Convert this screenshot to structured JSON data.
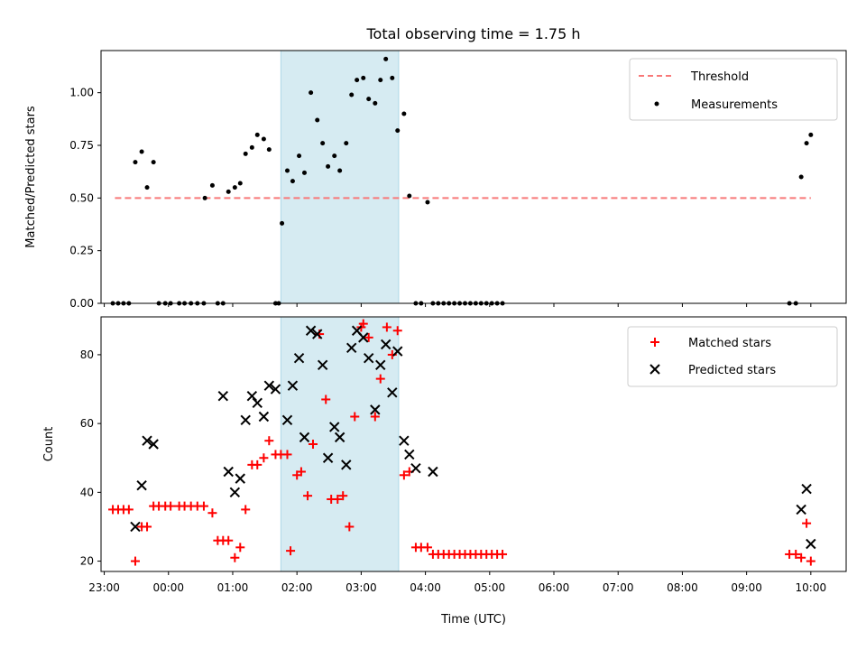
{
  "colors": {
    "threshold": "#f87878",
    "measurement": "#000000",
    "matched": "#ff0000",
    "predicted": "#000000",
    "span": "#add8e6"
  },
  "chart_data": [
    {
      "type": "scatter",
      "title": "Total observing time = 1.75 h",
      "xlabel": "",
      "ylabel": "Matched/Predicted stars",
      "ylim": [
        0.0,
        1.2
      ],
      "yticks": [
        0.0,
        0.25,
        0.5,
        0.75,
        1.0
      ],
      "ytick_labels": [
        "0.00",
        "0.25",
        "0.50",
        "0.75",
        "1.00"
      ],
      "xlim_hours": [
        -1.05,
        10.55
      ],
      "highlight_span": {
        "from": "01:45",
        "to": "03:35"
      },
      "legend": {
        "position": "top-right",
        "entries": [
          "Threshold",
          "Measurements"
        ]
      },
      "threshold": {
        "name": "Threshold",
        "y": 0.5,
        "x_from": "23:10",
        "x_to": "10:00",
        "style": "dashed"
      },
      "series": [
        {
          "name": "Measurements",
          "points": [
            [
              "23:08",
              0
            ],
            [
              "23:13",
              0
            ],
            [
              "23:18",
              0
            ],
            [
              "23:23",
              0
            ],
            [
              "23:29",
              0.67
            ],
            [
              "23:35",
              0.72
            ],
            [
              "23:40",
              0.55
            ],
            [
              "23:46",
              0.67
            ],
            [
              "23:51",
              0
            ],
            [
              "23:57",
              0
            ],
            [
              "00:02",
              0
            ],
            [
              "00:10",
              0
            ],
            [
              "00:15",
              0
            ],
            [
              "00:21",
              0
            ],
            [
              "00:27",
              0
            ],
            [
              "00:33",
              0
            ],
            [
              "00:34",
              0.5
            ],
            [
              "00:41",
              0.56
            ],
            [
              "00:46",
              0
            ],
            [
              "00:51",
              0
            ],
            [
              "00:56",
              0.53
            ],
            [
              "01:02",
              0.55
            ],
            [
              "01:07",
              0.57
            ],
            [
              "01:12",
              0.71
            ],
            [
              "01:18",
              0.74
            ],
            [
              "01:23",
              0.8
            ],
            [
              "01:29",
              0.78
            ],
            [
              "01:34",
              0.73
            ],
            [
              "01:40",
              0
            ],
            [
              "01:43",
              0
            ],
            [
              "01:46",
              0.38
            ],
            [
              "01:51",
              0.63
            ],
            [
              "01:56",
              0.58
            ],
            [
              "02:02",
              0.7
            ],
            [
              "02:07",
              0.62
            ],
            [
              "02:13",
              1.0
            ],
            [
              "02:19",
              0.87
            ],
            [
              "02:24",
              0.76
            ],
            [
              "02:29",
              0.65
            ],
            [
              "02:35",
              0.7
            ],
            [
              "02:40",
              0.63
            ],
            [
              "02:46",
              0.76
            ],
            [
              "02:51",
              0.99
            ],
            [
              "02:56",
              1.06
            ],
            [
              "03:02",
              1.07
            ],
            [
              "03:07",
              0.97
            ],
            [
              "03:13",
              0.95
            ],
            [
              "03:18",
              1.06
            ],
            [
              "03:23",
              1.16
            ],
            [
              "03:29",
              1.07
            ],
            [
              "03:34",
              0.82
            ],
            [
              "03:40",
              0.9
            ],
            [
              "03:45",
              0.51
            ],
            [
              "03:51",
              0
            ],
            [
              "03:56",
              0
            ],
            [
              "04:02",
              0.48
            ],
            [
              "04:07",
              0
            ],
            [
              "04:12",
              0
            ],
            [
              "04:17",
              0
            ],
            [
              "04:22",
              0
            ],
            [
              "04:27",
              0
            ],
            [
              "04:32",
              0
            ],
            [
              "04:37",
              0
            ],
            [
              "04:42",
              0
            ],
            [
              "04:47",
              0
            ],
            [
              "04:52",
              0
            ],
            [
              "04:57",
              0
            ],
            [
              "05:02",
              0
            ],
            [
              "05:07",
              0
            ],
            [
              "05:12",
              0
            ],
            [
              "09:40",
              0
            ],
            [
              "09:46",
              0
            ],
            [
              "09:51",
              0.6
            ],
            [
              "09:56",
              0.76
            ],
            [
              "10:00",
              0.8
            ]
          ]
        }
      ]
    },
    {
      "type": "scatter",
      "title": "",
      "xlabel": "Time (UTC)",
      "ylabel": "Count",
      "ylim": [
        17,
        91
      ],
      "yticks": [
        20,
        40,
        60,
        80
      ],
      "ytick_labels": [
        "20",
        "40",
        "60",
        "80"
      ],
      "xlim_hours": [
        -1.05,
        10.55
      ],
      "xticks": [
        "23:00",
        "00:00",
        "01:00",
        "02:00",
        "03:00",
        "04:00",
        "05:00",
        "06:00",
        "07:00",
        "08:00",
        "09:00",
        "10:00"
      ],
      "highlight_span": {
        "from": "01:45",
        "to": "03:35"
      },
      "legend": {
        "position": "top-right",
        "entries": [
          "Matched stars",
          "Predicted stars"
        ]
      },
      "series": [
        {
          "name": "Matched stars",
          "marker": "+",
          "points": [
            [
              "23:08",
              35
            ],
            [
              "23:13",
              35
            ],
            [
              "23:18",
              35
            ],
            [
              "23:23",
              35
            ],
            [
              "23:29",
              20
            ],
            [
              "23:35",
              30
            ],
            [
              "23:40",
              30
            ],
            [
              "23:46",
              36
            ],
            [
              "23:51",
              36
            ],
            [
              "23:57",
              36
            ],
            [
              "00:02",
              36
            ],
            [
              "00:10",
              36
            ],
            [
              "00:15",
              36
            ],
            [
              "00:21",
              36
            ],
            [
              "00:27",
              36
            ],
            [
              "00:33",
              36
            ],
            [
              "00:41",
              34
            ],
            [
              "00:46",
              26
            ],
            [
              "00:51",
              26
            ],
            [
              "00:56",
              26
            ],
            [
              "01:02",
              21
            ],
            [
              "01:07",
              24
            ],
            [
              "01:12",
              35
            ],
            [
              "01:18",
              48
            ],
            [
              "01:23",
              48
            ],
            [
              "01:29",
              50
            ],
            [
              "01:34",
              55
            ],
            [
              "01:40",
              51
            ],
            [
              "01:45",
              51
            ],
            [
              "01:51",
              51
            ],
            [
              "01:54",
              23
            ],
            [
              "02:00",
              45
            ],
            [
              "02:04",
              46
            ],
            [
              "02:10",
              39
            ],
            [
              "02:15",
              54
            ],
            [
              "02:21",
              86
            ],
            [
              "02:27",
              67
            ],
            [
              "02:32",
              38
            ],
            [
              "02:38",
              38
            ],
            [
              "02:43",
              39
            ],
            [
              "02:49",
              30
            ],
            [
              "02:54",
              62
            ],
            [
              "03:00",
              88
            ],
            [
              "03:02",
              89
            ],
            [
              "03:07",
              85
            ],
            [
              "03:13",
              62
            ],
            [
              "03:18",
              73
            ],
            [
              "03:24",
              88
            ],
            [
              "03:29",
              80
            ],
            [
              "03:34",
              87
            ],
            [
              "03:40",
              45
            ],
            [
              "03:45",
              46
            ],
            [
              "03:51",
              24
            ],
            [
              "03:56",
              24
            ],
            [
              "04:02",
              24
            ],
            [
              "04:07",
              22
            ],
            [
              "04:12",
              22
            ],
            [
              "04:17",
              22
            ],
            [
              "04:22",
              22
            ],
            [
              "04:27",
              22
            ],
            [
              "04:32",
              22
            ],
            [
              "04:37",
              22
            ],
            [
              "04:42",
              22
            ],
            [
              "04:47",
              22
            ],
            [
              "04:52",
              22
            ],
            [
              "04:57",
              22
            ],
            [
              "05:02",
              22
            ],
            [
              "05:07",
              22
            ],
            [
              "05:12",
              22
            ],
            [
              "09:40",
              22
            ],
            [
              "09:46",
              22
            ],
            [
              "09:51",
              21
            ],
            [
              "09:56",
              31
            ],
            [
              "10:00",
              20
            ]
          ]
        },
        {
          "name": "Predicted stars",
          "marker": "x",
          "points": [
            [
              "23:29",
              30
            ],
            [
              "23:35",
              42
            ],
            [
              "23:40",
              55
            ],
            [
              "23:46",
              54
            ],
            [
              "00:51",
              68
            ],
            [
              "00:56",
              46
            ],
            [
              "01:02",
              40
            ],
            [
              "01:07",
              44
            ],
            [
              "01:12",
              61
            ],
            [
              "01:18",
              68
            ],
            [
              "01:23",
              66
            ],
            [
              "01:29",
              62
            ],
            [
              "01:34",
              71
            ],
            [
              "01:40",
              70
            ],
            [
              "01:51",
              61
            ],
            [
              "01:56",
              71
            ],
            [
              "02:02",
              79
            ],
            [
              "02:07",
              56
            ],
            [
              "02:13",
              87
            ],
            [
              "02:19",
              86
            ],
            [
              "02:24",
              77
            ],
            [
              "02:29",
              50
            ],
            [
              "02:35",
              59
            ],
            [
              "02:40",
              56
            ],
            [
              "02:46",
              48
            ],
            [
              "02:51",
              82
            ],
            [
              "02:56",
              87
            ],
            [
              "03:02",
              85
            ],
            [
              "03:07",
              79
            ],
            [
              "03:13",
              64
            ],
            [
              "03:18",
              77
            ],
            [
              "03:23",
              83
            ],
            [
              "03:29",
              69
            ],
            [
              "03:34",
              81
            ],
            [
              "03:40",
              55
            ],
            [
              "03:45",
              51
            ],
            [
              "03:51",
              47
            ],
            [
              "04:07",
              46
            ],
            [
              "09:51",
              35
            ],
            [
              "09:56",
              41
            ],
            [
              "10:00",
              25
            ]
          ]
        }
      ]
    }
  ]
}
